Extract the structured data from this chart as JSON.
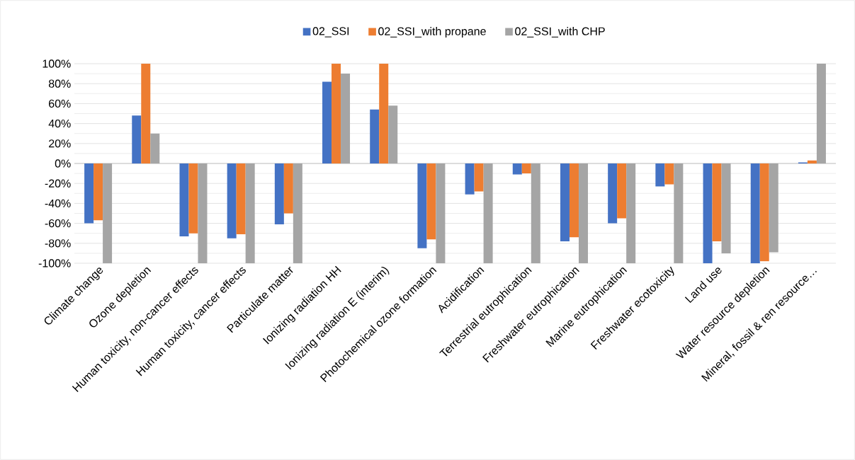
{
  "chart_data": {
    "type": "bar",
    "categories": [
      "Climate change",
      "Ozone depletion",
      "Human toxicity, non-cancer effects",
      "Human toxicity, cancer effects",
      "Particulate matter",
      "Ionizing radiation HH",
      "Ionizing radiation E (interim)",
      "Photochemical ozone formation",
      "Acidification",
      "Terrestrial eutrophication",
      "Freshwater eutrophication",
      "Marine eutrophication",
      "Freshwater ecotoxicity",
      "Land use",
      "Water resource depletion",
      "Mineral, fossil & ren resource…"
    ],
    "series": [
      {
        "name": "02_SSI",
        "color": "#4472c4",
        "values": [
          -60,
          48,
          -73,
          -75,
          -61,
          82,
          54,
          -85,
          -31,
          -11,
          -78,
          -60,
          -23,
          -100,
          -100,
          1
        ]
      },
      {
        "name": "02_SSI_with propane",
        "color": "#ed7d31",
        "values": [
          -57,
          100,
          -70,
          -71,
          -50,
          100,
          100,
          -76,
          -28,
          -10,
          -74,
          -55,
          -21,
          -78,
          -98,
          3
        ]
      },
      {
        "name": "02_SSI_with CHP",
        "color": "#a5a5a5",
        "values": [
          -100,
          30,
          -100,
          -100,
          -100,
          90,
          58,
          -100,
          -100,
          -100,
          -100,
          -100,
          -100,
          -90,
          -89,
          100
        ]
      }
    ],
    "ylim": [
      -100,
      100
    ],
    "yticks": [
      {
        "value": -100,
        "label": "-100%"
      },
      {
        "value": -80,
        "label": "-80%"
      },
      {
        "value": -60,
        "label": "-60%"
      },
      {
        "value": -40,
        "label": "-40%"
      },
      {
        "value": -20,
        "label": "-20%"
      },
      {
        "value": 0,
        "label": "0%"
      },
      {
        "value": 20,
        "label": "20%"
      },
      {
        "value": 40,
        "label": "40%"
      },
      {
        "value": 60,
        "label": "60%"
      },
      {
        "value": 80,
        "label": "80%"
      },
      {
        "value": 100,
        "label": "100%"
      }
    ],
    "grid": "y",
    "legend": "top"
  }
}
